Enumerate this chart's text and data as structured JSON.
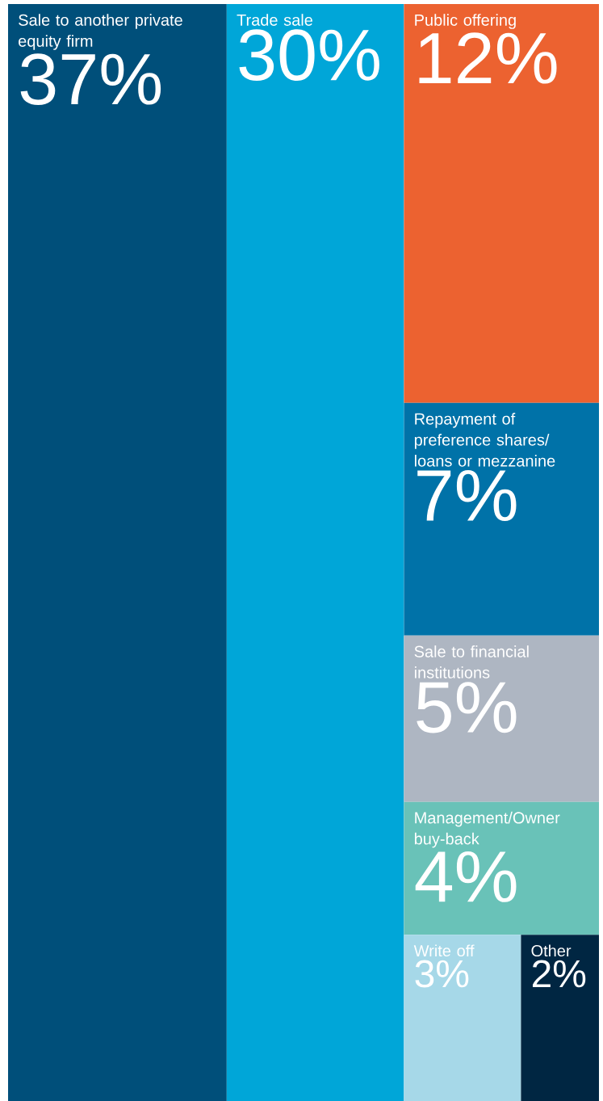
{
  "chart_data": {
    "type": "other",
    "categories": [
      "Sale to another private equity firm",
      "Trade sale",
      "Public offering",
      "Repayment of preference shares/ loans or mezzanine",
      "Sale to financial institutions",
      "Management/Owner buy-back",
      "Write off",
      "Other"
    ],
    "values": [
      37,
      30,
      12,
      7,
      5,
      4,
      3,
      2
    ],
    "value_labels": [
      "37%",
      "30%",
      "12%",
      "7%",
      "5%",
      "4%",
      "3%",
      "2%"
    ],
    "colors": [
      "#004f7a",
      "#00a6d8",
      "#ec6230",
      "#0072a8",
      "#aeb6c2",
      "#69c2b8",
      "#a6d8e8",
      "#002642"
    ]
  }
}
